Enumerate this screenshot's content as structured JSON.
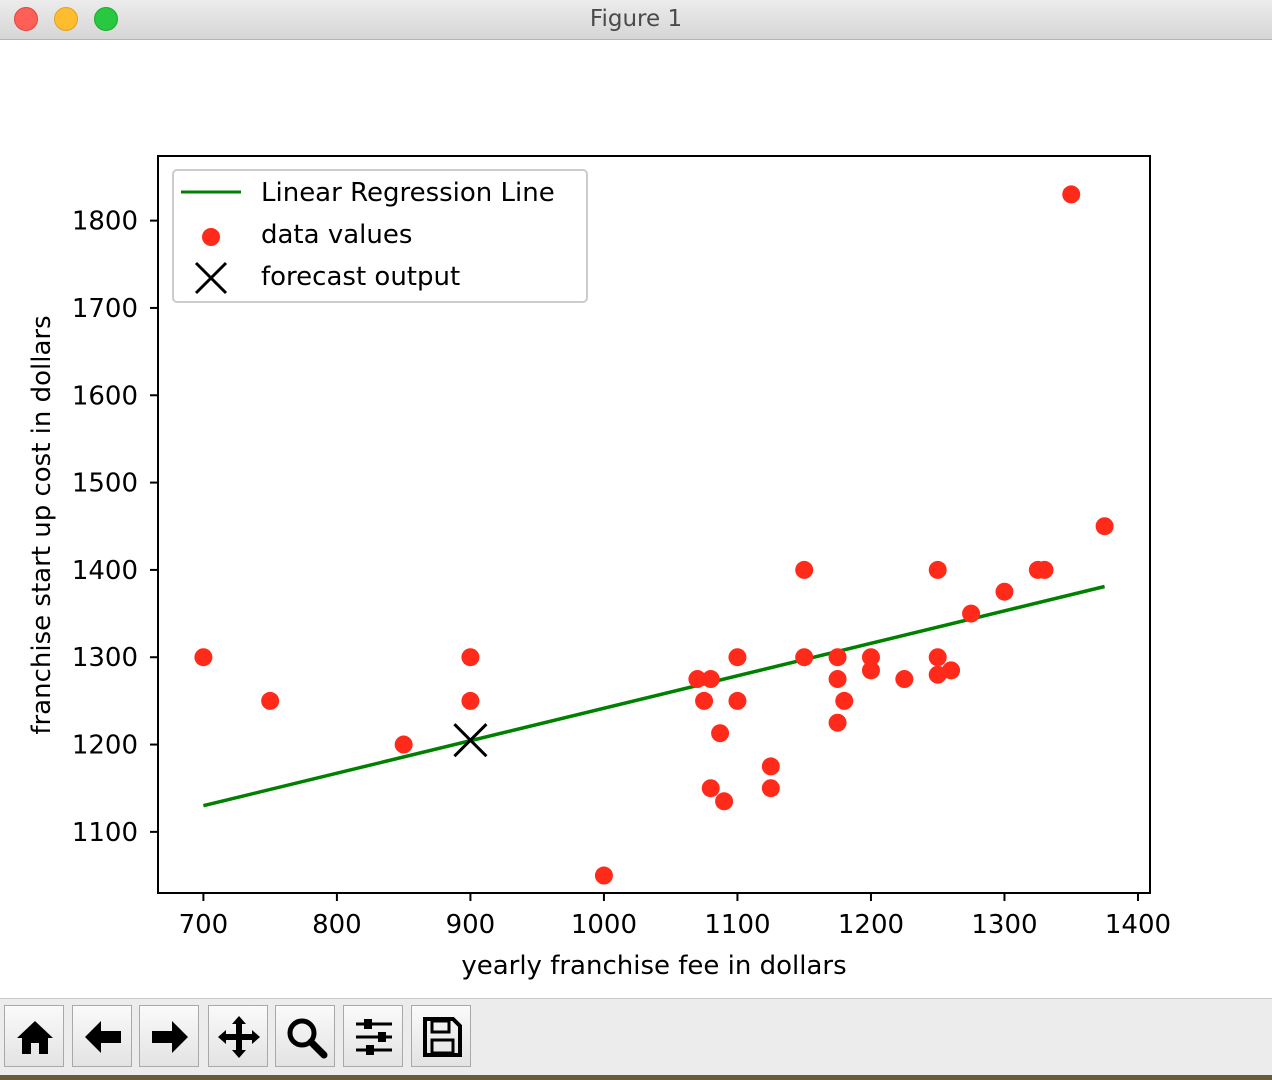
{
  "window": {
    "title": "Figure 1"
  },
  "chart_data": {
    "type": "scatter",
    "title": "",
    "xlabel": "yearly franchise fee in dollars",
    "ylabel": "franchise start up cost in dollars",
    "xlim": [
      666,
      1409
    ],
    "ylim": [
      1030,
      1874
    ],
    "xticks": [
      700,
      800,
      900,
      1000,
      1100,
      1200,
      1300,
      1400
    ],
    "yticks": [
      1100,
      1200,
      1300,
      1400,
      1500,
      1600,
      1700,
      1800
    ],
    "grid": false,
    "legend_position": "top-left",
    "series": [
      {
        "name": "Linear Regression Line",
        "kind": "line",
        "color": "#008000",
        "x": [
          700,
          1375
        ],
        "y": [
          1130,
          1381
        ]
      },
      {
        "name": "data values",
        "kind": "scatter",
        "color": "#ff2a1a",
        "points": [
          [
            700,
            1300
          ],
          [
            750,
            1250
          ],
          [
            850,
            1200
          ],
          [
            900,
            1300
          ],
          [
            900,
            1250
          ],
          [
            1000,
            1050
          ],
          [
            1070,
            1275
          ],
          [
            1075,
            1250
          ],
          [
            1080,
            1275
          ],
          [
            1080,
            1150
          ],
          [
            1087,
            1213
          ],
          [
            1090,
            1135
          ],
          [
            1100,
            1300
          ],
          [
            1100,
            1250
          ],
          [
            1125,
            1175
          ],
          [
            1125,
            1150
          ],
          [
            1150,
            1400
          ],
          [
            1150,
            1300
          ],
          [
            1175,
            1300
          ],
          [
            1175,
            1275
          ],
          [
            1175,
            1225
          ],
          [
            1180,
            1250
          ],
          [
            1200,
            1300
          ],
          [
            1200,
            1285
          ],
          [
            1225,
            1275
          ],
          [
            1250,
            1400
          ],
          [
            1250,
            1300
          ],
          [
            1250,
            1280
          ],
          [
            1260,
            1285
          ],
          [
            1275,
            1350
          ],
          [
            1300,
            1375
          ],
          [
            1325,
            1400
          ],
          [
            1330,
            1400
          ],
          [
            1350,
            1830
          ],
          [
            1375,
            1450
          ]
        ]
      },
      {
        "name": "forecast output",
        "kind": "marker-x",
        "color": "#000000",
        "points": [
          [
            900,
            1205
          ]
        ]
      }
    ]
  },
  "toolbar": {
    "buttons": [
      {
        "name": "home-button",
        "icon": "home-icon"
      },
      {
        "name": "back-button",
        "icon": "arrow-left-icon"
      },
      {
        "name": "forward-button",
        "icon": "arrow-right-icon"
      },
      {
        "name": "pan-button",
        "icon": "move-icon"
      },
      {
        "name": "zoom-button",
        "icon": "magnifier-icon"
      },
      {
        "name": "configure-subplots-button",
        "icon": "sliders-icon"
      },
      {
        "name": "save-button",
        "icon": "floppy-disk-icon"
      }
    ]
  }
}
